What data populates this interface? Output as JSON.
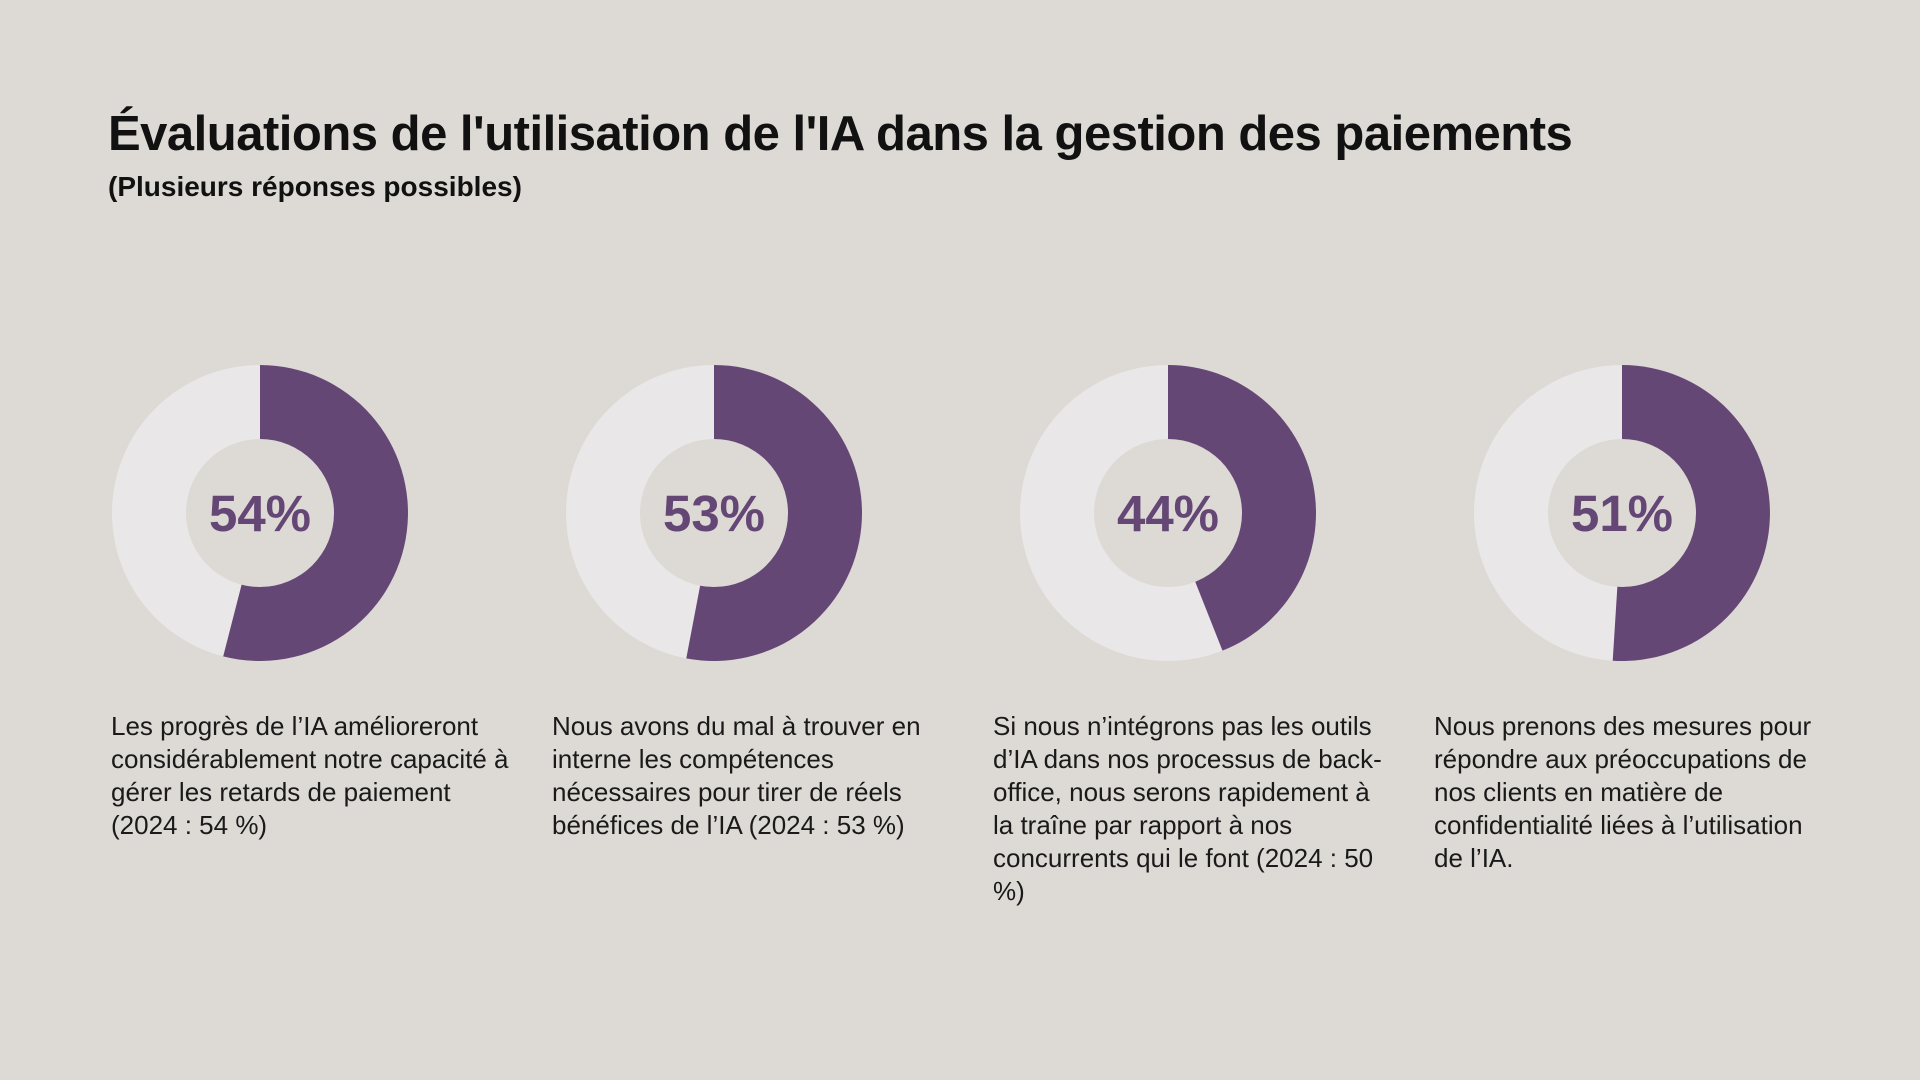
{
  "title": "Évaluations de l'utilisation de l'IA dans la gestion des paiements",
  "subtitle": "(Plusieurs réponses possibles)",
  "colors": {
    "background": "#ddd9d5",
    "fill": "#654776",
    "track": "#eae7e8",
    "center": "#ddd9d5",
    "label": "#654776"
  },
  "chart_data": {
    "type": "pie",
    "style": "donut",
    "title": "Évaluations de l'utilisation de l'IA dans la gestion des paiements",
    "subtitle": "(Plusieurs réponses possibles)",
    "items": [
      {
        "value": 54,
        "label": "54%",
        "description": "Les progrès de l’IA amélioreront considérablement notre capacité à gérer les retards de paiement (2024 : 54 %)"
      },
      {
        "value": 53,
        "label": "53%",
        "description": "Nous avons du mal à trouver en interne les compétences nécessaires pour tirer de réels bénéfices de l’IA (2024 : 53 %)"
      },
      {
        "value": 44,
        "label": "44%",
        "description": "Si nous n’intégrons pas les outils d’IA dans nos processus de back-office, nous serons rapidement à la traîne par rapport à nos concurrents qui le font (2024 : 50 %)"
      },
      {
        "value": 51,
        "label": "51%",
        "description": "Nous prenons des mesures pour répondre aux préoccupations de nos clients en matière de confidentialité liées à l’utilisation de l’IA."
      }
    ]
  }
}
